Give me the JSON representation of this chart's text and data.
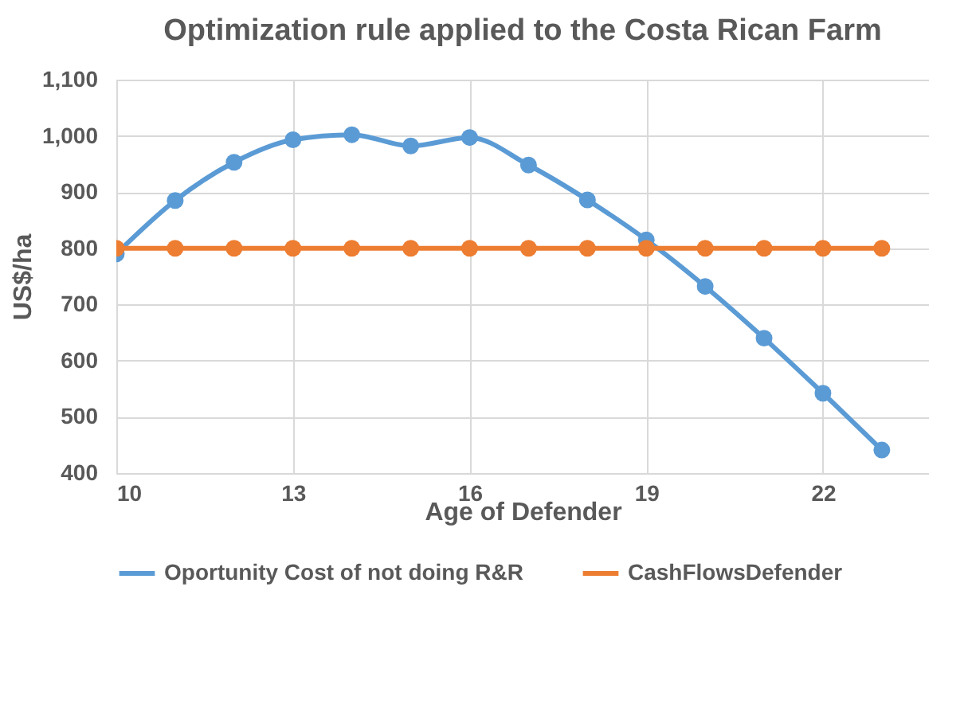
{
  "chart_data": {
    "type": "line",
    "title": "Optimization rule applied to the Costa Rican Farm",
    "xlabel": "Age of Defender",
    "ylabel": "US$/ha",
    "x": [
      10,
      11,
      12,
      13,
      14,
      15,
      16,
      17,
      18,
      19,
      20,
      21,
      22,
      23
    ],
    "series": [
      {
        "name": "Oportunity Cost of not doing R&R",
        "color": "#5b9bd5",
        "values": [
          790,
          885,
          953,
          993,
          1002,
          982,
          997,
          948,
          886,
          815,
          732,
          640,
          542,
          441
        ]
      },
      {
        "name": "CashFlowsDefender",
        "color": "#ed7d31",
        "values": [
          800,
          800,
          800,
          800,
          800,
          800,
          800,
          800,
          800,
          800,
          800,
          800,
          800,
          800
        ]
      }
    ],
    "xlim": [
      10,
      23.8
    ],
    "xticks": [
      10,
      13,
      16,
      19,
      22
    ],
    "ylim": [
      400,
      1100
    ],
    "yticks": [
      {
        "value": 400,
        "label": "400"
      },
      {
        "value": 500,
        "label": "500"
      },
      {
        "value": 600,
        "label": "600"
      },
      {
        "value": 700,
        "label": "700"
      },
      {
        "value": 800,
        "label": "800"
      },
      {
        "value": 900,
        "label": "900"
      },
      {
        "value": 1000,
        "label": "1,000"
      },
      {
        "value": 1100,
        "label": "1,100"
      }
    ],
    "grid": true,
    "legend": "bottom",
    "marker": "circle",
    "line_style": "solid"
  }
}
